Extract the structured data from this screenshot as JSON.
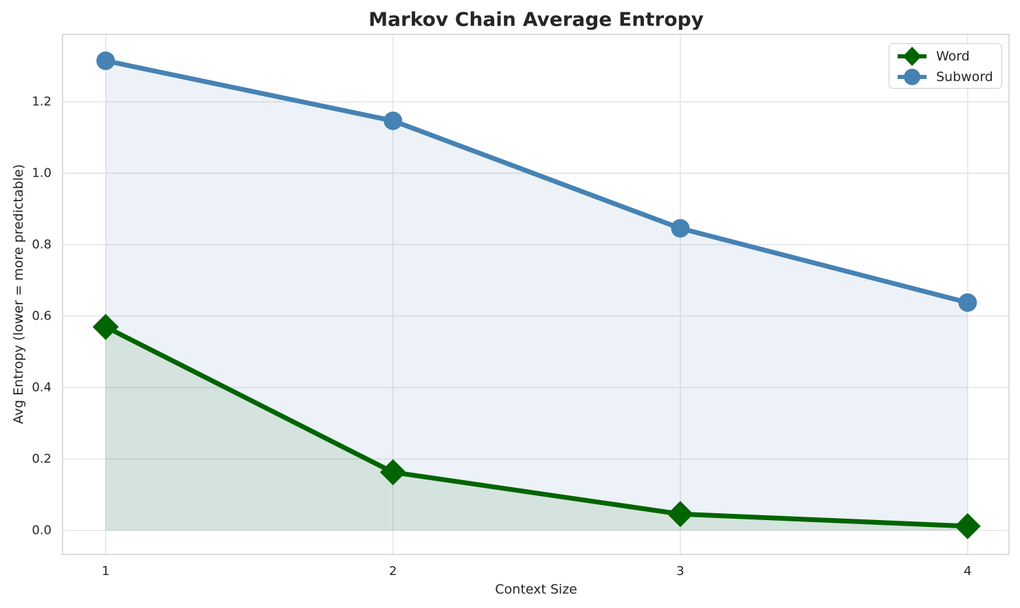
{
  "chart_data": {
    "type": "line",
    "title": "Markov Chain Average Entropy",
    "xlabel": "Context Size",
    "ylabel": "Avg Entropy (lower = more predictable)",
    "x": [
      1,
      2,
      3,
      4
    ],
    "series": [
      {
        "name": "Word",
        "values": [
          0.57,
          0.163,
          0.046,
          0.012
        ],
        "color": "#006400",
        "marker": "diamond",
        "fill_to_zero": true,
        "fill_alpha": 0.1
      },
      {
        "name": "Subword",
        "values": [
          1.315,
          1.147,
          0.846,
          0.638
        ],
        "color": "#4682B4",
        "marker": "circle",
        "fill_to_zero": true,
        "fill_alpha": 0.1
      }
    ],
    "xticks": [
      1,
      2,
      3,
      4
    ],
    "yticks": [
      0.0,
      0.2,
      0.4,
      0.6,
      0.8,
      1.0,
      1.2
    ],
    "xlim": [
      0.85,
      4.144
    ],
    "ylim": [
      -0.067,
      1.389
    ],
    "grid": true,
    "legend_position": "top-right"
  },
  "colors": {
    "grid": "#e2e2e2",
    "spine": "#cccccc",
    "text": "#262626",
    "background": "#ffffff"
  }
}
